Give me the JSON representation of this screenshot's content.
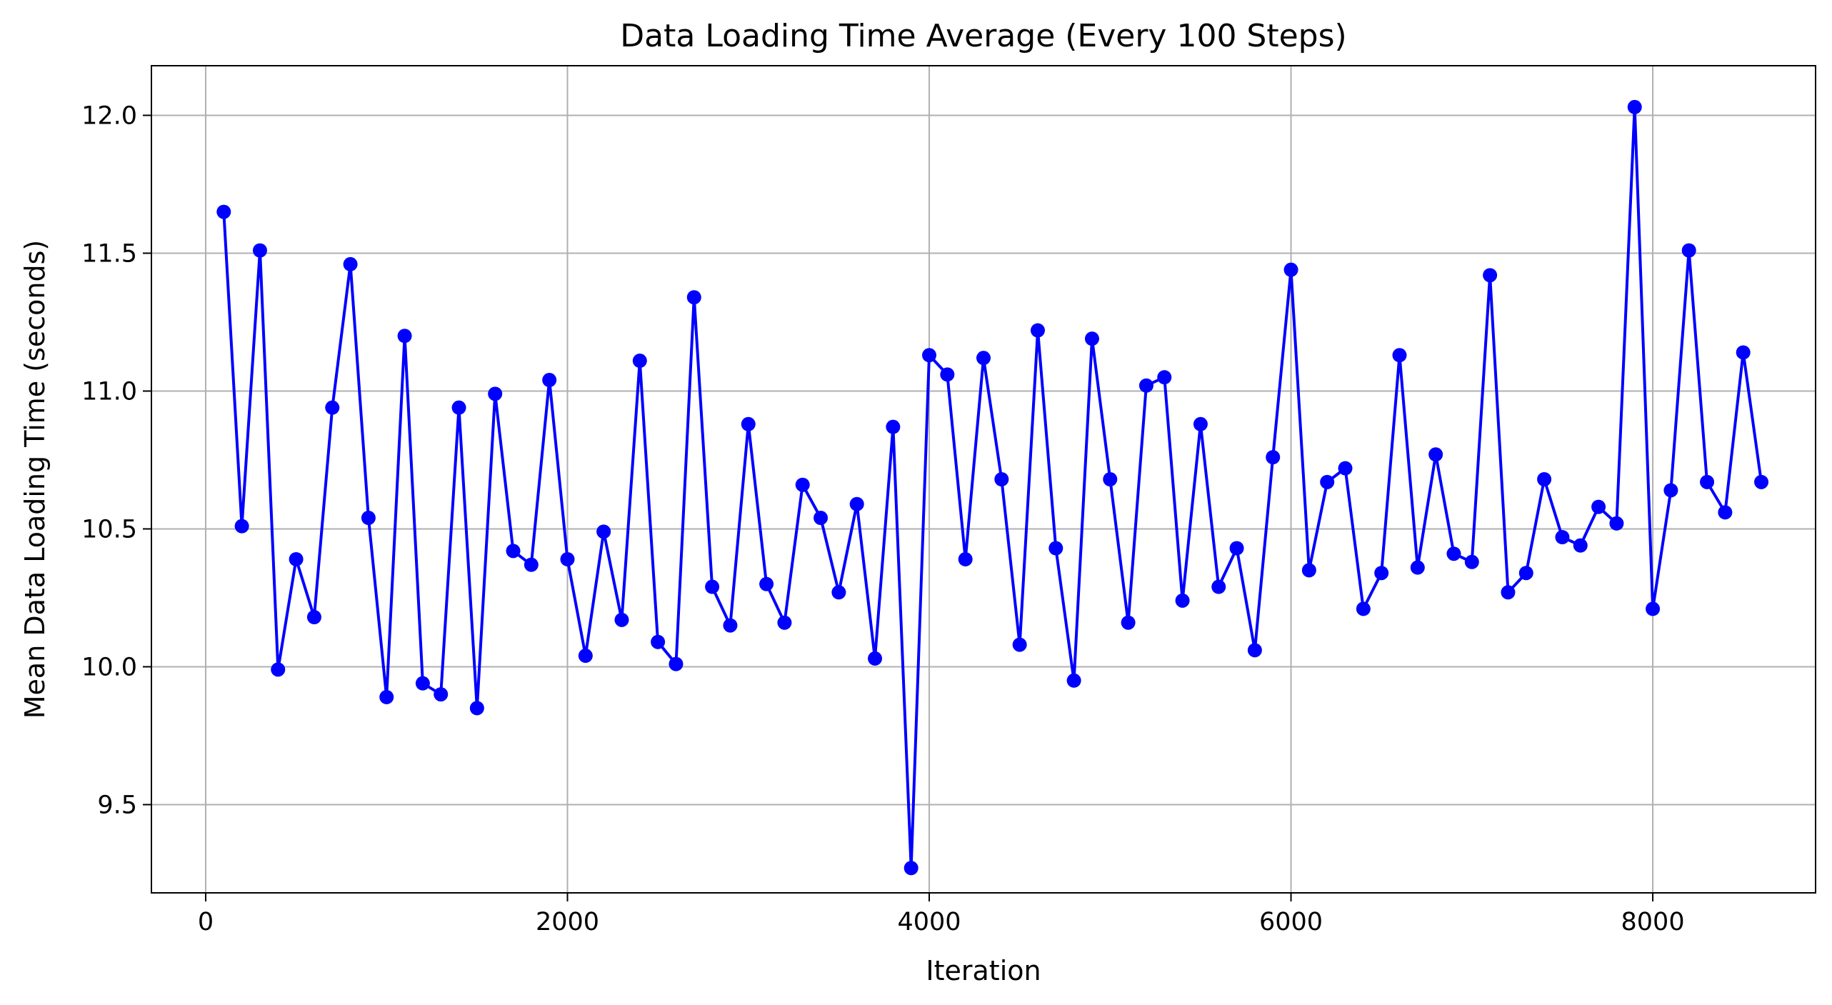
{
  "chart_data": {
    "type": "line",
    "title": "Data Loading Time Average (Every 100 Steps)",
    "xlabel": "Iteration",
    "ylabel": "Mean Data Loading Time (seconds)",
    "xlim": [
      -300,
      8900
    ],
    "ylim": [
      9.18,
      12.18
    ],
    "xticks": [
      0,
      2000,
      4000,
      6000,
      8000
    ],
    "xtick_labels": [
      "0",
      "2000",
      "4000",
      "6000",
      "8000"
    ],
    "yticks": [
      9.5,
      10.0,
      10.5,
      11.0,
      11.5,
      12.0
    ],
    "ytick_labels": [
      "9.5",
      "10.0",
      "10.5",
      "11.0",
      "11.5",
      "12.0"
    ],
    "grid": true,
    "legend": "none",
    "series": [
      {
        "color": "#0000ff",
        "marker": "circle",
        "x": [
          100,
          200,
          300,
          400,
          500,
          600,
          700,
          800,
          900,
          1000,
          1100,
          1200,
          1300,
          1400,
          1500,
          1600,
          1700,
          1800,
          1900,
          2000,
          2100,
          2200,
          2300,
          2400,
          2500,
          2600,
          2700,
          2800,
          2900,
          3000,
          3100,
          3200,
          3300,
          3400,
          3500,
          3600,
          3700,
          3800,
          3900,
          4000,
          4100,
          4200,
          4300,
          4400,
          4500,
          4600,
          4700,
          4800,
          4900,
          5000,
          5100,
          5200,
          5300,
          5400,
          5500,
          5600,
          5700,
          5800,
          5900,
          6000,
          6100,
          6200,
          6300,
          6400,
          6500,
          6600,
          6700,
          6800,
          6900,
          7000,
          7100,
          7200,
          7300,
          7400,
          7500,
          7600,
          7700,
          7800,
          7900,
          8000,
          8100,
          8200,
          8300,
          8400,
          8500,
          8600
        ],
        "y": [
          11.65,
          10.51,
          11.51,
          9.99,
          10.39,
          10.18,
          10.94,
          11.46,
          10.54,
          9.89,
          11.2,
          9.94,
          9.9,
          10.94,
          9.85,
          10.99,
          10.42,
          10.37,
          11.04,
          10.39,
          10.04,
          10.49,
          10.17,
          11.11,
          10.09,
          10.01,
          11.34,
          10.29,
          10.15,
          10.88,
          10.3,
          10.16,
          10.66,
          10.54,
          10.27,
          10.59,
          10.03,
          10.87,
          9.27,
          11.13,
          11.06,
          10.39,
          11.12,
          10.68,
          10.08,
          11.22,
          10.43,
          9.95,
          11.19,
          10.68,
          10.16,
          11.02,
          11.05,
          10.24,
          10.88,
          10.29,
          10.43,
          10.06,
          10.76,
          11.44,
          10.35,
          10.67,
          10.72,
          10.21,
          10.34,
          11.13,
          10.36,
          10.77,
          10.41,
          10.38,
          11.42,
          10.27,
          10.34,
          10.68,
          10.47,
          10.44,
          10.58,
          10.52,
          12.03,
          10.21,
          10.64,
          11.51,
          10.67,
          10.56,
          11.14,
          10.67
        ]
      }
    ]
  }
}
